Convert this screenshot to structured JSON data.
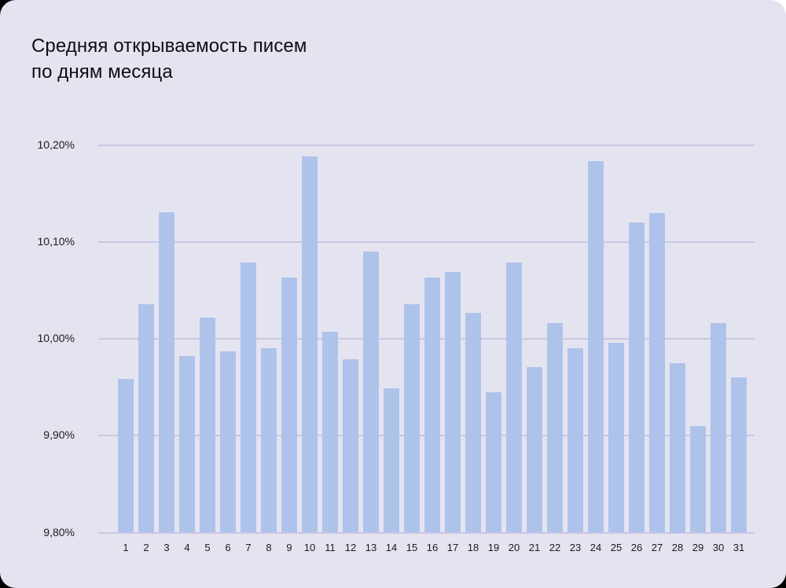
{
  "chart_data": {
    "type": "bar",
    "title": "Средняя открываемость писем по дням месяца",
    "title_lines": [
      "Средняя открываемость писем",
      "по дням месяца"
    ],
    "xlabel": "",
    "ylabel": "",
    "categories": [
      "1",
      "2",
      "3",
      "4",
      "5",
      "6",
      "7",
      "8",
      "9",
      "10",
      "11",
      "12",
      "13",
      "14",
      "15",
      "16",
      "17",
      "18",
      "19",
      "20",
      "21",
      "22",
      "23",
      "24",
      "25",
      "26",
      "27",
      "28",
      "29",
      "30",
      "31"
    ],
    "values": [
      9.959,
      10.036,
      10.131,
      9.982,
      10.022,
      9.987,
      10.079,
      9.99,
      10.063,
      10.188,
      10.007,
      9.979,
      10.09,
      9.949,
      10.036,
      10.063,
      10.069,
      10.027,
      9.945,
      10.079,
      9.971,
      10.016,
      9.99,
      10.183,
      9.996,
      10.12,
      10.13,
      9.975,
      9.91,
      10.016,
      9.96
    ],
    "ylim": [
      9.8,
      10.2
    ],
    "yticks": [
      10.2,
      10.1,
      10.0,
      9.9,
      9.8
    ],
    "ytick_labels": [
      "10,20%",
      "10,10%",
      "10,00%",
      "9,90%",
      "9,80%"
    ],
    "grid": true,
    "legend": null,
    "colors": {
      "bar": "#aec3ea",
      "grid": "#c9c7e3",
      "background": "#e4e4f0",
      "text": "#0d0d12"
    }
  }
}
